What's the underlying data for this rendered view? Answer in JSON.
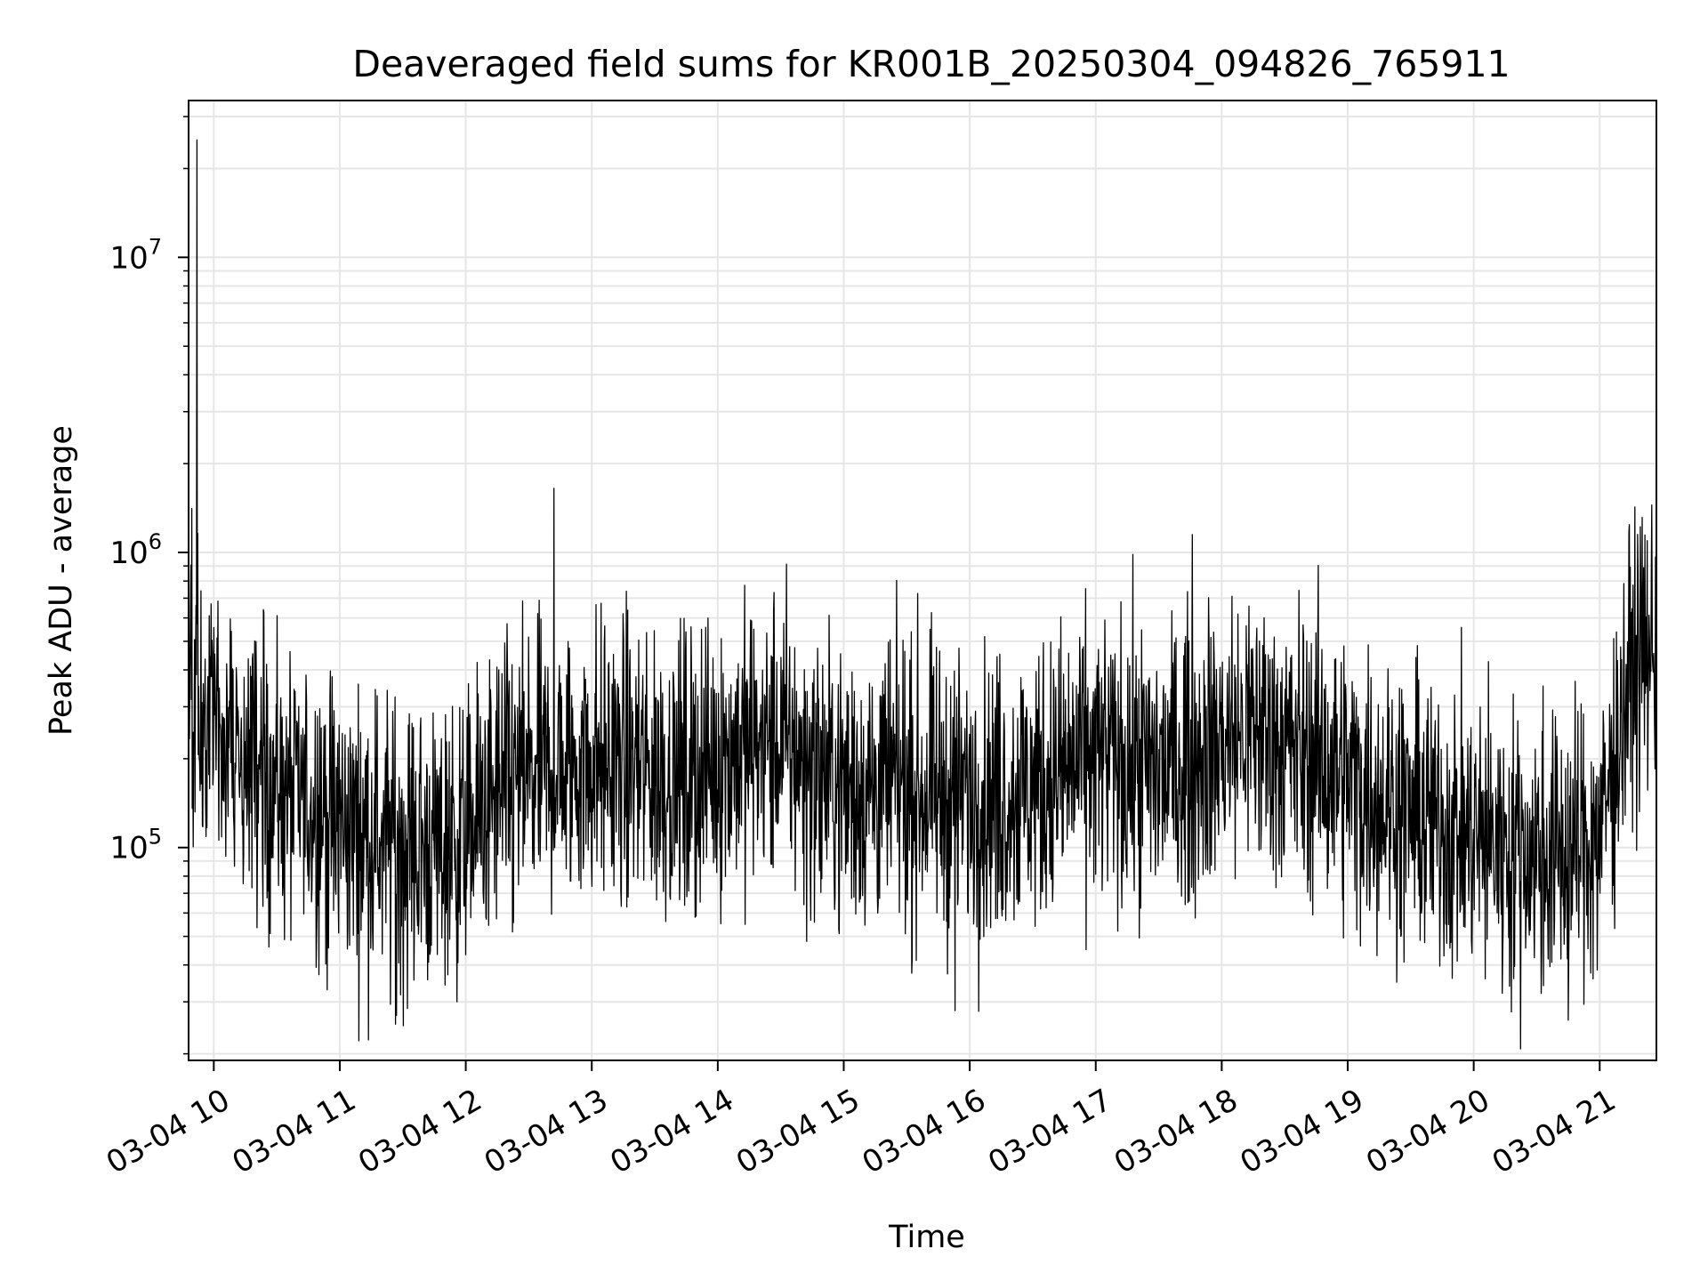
{
  "chart_data": {
    "type": "line",
    "title": "Deaveraged field sums for KR001B_20250304_094826_765911",
    "xlabel": "Time",
    "ylabel": "Peak ADU - average",
    "x_tick_labels": [
      "03-04 10",
      "03-04 11",
      "03-04 12",
      "03-04 13",
      "03-04 14",
      "03-04 15",
      "03-04 16",
      "03-04 17",
      "03-04 18",
      "03-04 19",
      "03-04 20",
      "03-04 21"
    ],
    "y_tick_labels": [
      {
        "base": "10",
        "exp": "5"
      },
      {
        "base": "10",
        "exp": "6"
      },
      {
        "base": "10",
        "exp": "7"
      }
    ],
    "y_scale": "log",
    "ylim": [
      19000,
      34000000
    ],
    "xlim": [
      "2025-03-04 09:48",
      "2025-03-04 21:27"
    ],
    "grid": true,
    "line_color": "#000000",
    "grid_color": "#e6e6e6",
    "series": [
      {
        "x": [
          "2025-03-04 09:48",
          "2025-03-04 09:55",
          "2025-03-04 10:00",
          "2025-03-04 10:15",
          "2025-03-04 10:30",
          "2025-03-04 10:45",
          "2025-03-04 11:00",
          "2025-03-04 11:15",
          "2025-03-04 11:30",
          "2025-03-04 11:45",
          "2025-03-04 12:00",
          "2025-03-04 12:15",
          "2025-03-04 12:30",
          "2025-03-04 12:45",
          "2025-03-04 13:00",
          "2025-03-04 13:15",
          "2025-03-04 13:30",
          "2025-03-04 13:45",
          "2025-03-04 14:00",
          "2025-03-04 14:15",
          "2025-03-04 14:30",
          "2025-03-04 14:45",
          "2025-03-04 15:00",
          "2025-03-04 15:15",
          "2025-03-04 15:30",
          "2025-03-04 15:45",
          "2025-03-04 16:00",
          "2025-03-04 16:15",
          "2025-03-04 16:30",
          "2025-03-04 16:45",
          "2025-03-04 17:00",
          "2025-03-04 17:15",
          "2025-03-04 17:30",
          "2025-03-04 17:45",
          "2025-03-04 18:00",
          "2025-03-04 18:15",
          "2025-03-04 18:30",
          "2025-03-04 18:45",
          "2025-03-04 19:00",
          "2025-03-04 19:15",
          "2025-03-04 19:30",
          "2025-03-04 19:45",
          "2025-03-04 20:00",
          "2025-03-04 20:15",
          "2025-03-04 20:30",
          "2025-03-04 20:45",
          "2025-03-04 21:00",
          "2025-03-04 21:15",
          "2025-03-04 21:27"
        ],
        "y": [
          300000,
          280000,
          260000,
          200000,
          160000,
          140000,
          120000,
          110000,
          100000,
          100000,
          110000,
          150000,
          170000,
          180000,
          200000,
          190000,
          180000,
          170000,
          200000,
          220000,
          230000,
          180000,
          160000,
          160000,
          160000,
          150000,
          150000,
          150000,
          160000,
          180000,
          200000,
          190000,
          180000,
          200000,
          230000,
          250000,
          220000,
          200000,
          170000,
          150000,
          130000,
          120000,
          110000,
          100000,
          95000,
          95000,
          110000,
          400000,
          500000
        ]
      }
    ],
    "spikes": [
      {
        "x": "2025-03-04 09:52",
        "y": 25000000
      },
      {
        "x": "2025-03-04 12:42",
        "y": 1650000
      },
      {
        "x": "2025-03-04 17:46",
        "y": 1150000
      },
      {
        "x": "2025-03-04 15:53",
        "y": 28000
      },
      {
        "x": "2025-03-04 11:27",
        "y": 27000
      },
      {
        "x": "2025-03-04 20:45",
        "y": 26000
      }
    ]
  }
}
